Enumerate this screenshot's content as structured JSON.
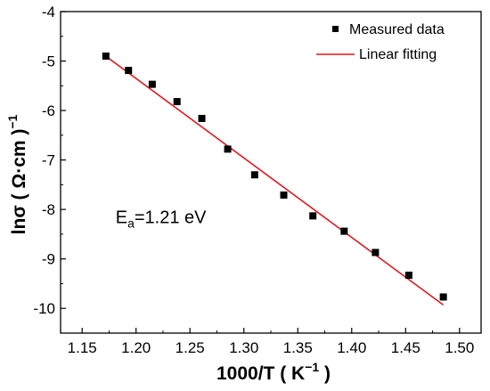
{
  "chart_data": {
    "type": "scatter",
    "title": "",
    "xlabel": "1000/T ( K",
    "xlabel_sup": "−1",
    "xlabel_end": " )",
    "ylabel": "lnσ ( Ω·cm )",
    "ylabel_sup": "−1",
    "xlim": [
      1.13,
      1.52
    ],
    "ylim": [
      -10.5,
      -4
    ],
    "xticks": [
      1.15,
      1.2,
      1.25,
      1.3,
      1.35,
      1.4,
      1.45,
      1.5
    ],
    "xtick_labels": [
      "1.15",
      "1.20",
      "1.25",
      "1.30",
      "1.35",
      "1.40",
      "1.45",
      "1.50"
    ],
    "yticks": [
      -10,
      -9,
      -8,
      -7,
      -6,
      -5,
      -4
    ],
    "ytick_labels": [
      "-10",
      "-9",
      "-8",
      "-7",
      "-6",
      "-5",
      "-4"
    ],
    "grid": false,
    "legend_position": "top-right",
    "series": [
      {
        "name": "Measured data",
        "kind": "scatter",
        "marker": "square",
        "color": "#000000",
        "x": [
          1.172,
          1.193,
          1.215,
          1.238,
          1.261,
          1.285,
          1.31,
          1.337,
          1.364,
          1.393,
          1.422,
          1.453,
          1.485
        ],
        "y": [
          -4.9,
          -5.19,
          -5.47,
          -5.82,
          -6.16,
          -6.78,
          -7.3,
          -7.71,
          -8.13,
          -8.44,
          -8.87,
          -9.33,
          -9.77
        ]
      },
      {
        "name": "Linear fitting",
        "kind": "line",
        "color": "#e8151b",
        "x": [
          1.17,
          1.485
        ],
        "y": [
          -4.87,
          -9.93
        ]
      }
    ],
    "annotation": {
      "base": "E",
      "sub": "a",
      "rest": "=1.21 eV",
      "x": 1.181,
      "y": -8.28
    }
  }
}
